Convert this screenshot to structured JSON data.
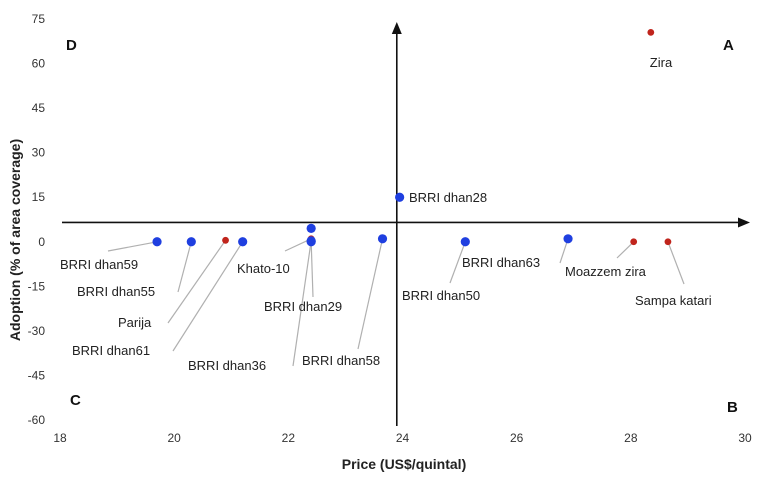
{
  "chart_data": {
    "type": "scatter",
    "title": "",
    "xlabel": "Price (US$/quintal)",
    "ylabel": "Adoption (% of area coverage)",
    "xlim": [
      18,
      30
    ],
    "ylim": [
      -60,
      75
    ],
    "x_ticks": [
      "18",
      "20",
      "22",
      "24",
      "26",
      "28",
      "30"
    ],
    "y_ticks": [
      "75",
      "60",
      "45",
      "30",
      "15",
      "0",
      "-15",
      "-30",
      "-45",
      "-60"
    ],
    "x_tick_values": [
      18,
      20,
      22,
      24,
      26,
      28,
      30
    ],
    "y_tick_values": [
      75,
      60,
      45,
      30,
      15,
      0,
      -15,
      -30,
      -45,
      -60
    ],
    "crosshair": {
      "x": 23.9,
      "y": 6.5
    },
    "grid": false,
    "quadrants": {
      "A": "A",
      "B": "B",
      "C": "C",
      "D": "D"
    },
    "colors": {
      "blue": "#1f3fe0",
      "red": "#c0241c",
      "axis": "#111111",
      "leader": "#b0b0b0"
    },
    "points": [
      {
        "label": "Zira",
        "x": 28.35,
        "y": 70.5,
        "color": "red"
      },
      {
        "label": "BRRI dhan28",
        "x": 23.95,
        "y": 15,
        "color": "blue"
      },
      {
        "label": "BRRI dhan59",
        "x": 19.7,
        "y": 0,
        "color": "blue"
      },
      {
        "label": "BRRI dhan55",
        "x": 20.3,
        "y": 0,
        "color": "blue"
      },
      {
        "label": "Parija",
        "x": 20.9,
        "y": 0.5,
        "color": "red"
      },
      {
        "label": "BRRI dhan61",
        "x": 21.2,
        "y": 0,
        "color": "blue"
      },
      {
        "label": "Khato-10",
        "x": 22.4,
        "y": 1,
        "color": "red"
      },
      {
        "label": "",
        "x": 22.4,
        "y": 4.5,
        "color": "blue"
      },
      {
        "label": "BRRI dhan29",
        "x": 22.4,
        "y": 0,
        "color": "blue"
      },
      {
        "label": "BRRI dhan36",
        "x": 22.4,
        "y": 0.3,
        "color": "blue"
      },
      {
        "label": "BRRI dhan58",
        "x": 23.65,
        "y": 1,
        "color": "blue"
      },
      {
        "label": "BRRI dhan50",
        "x": 25.1,
        "y": 0,
        "color": "blue"
      },
      {
        "label": "BRRI dhan63",
        "x": 26.9,
        "y": 1,
        "color": "blue"
      },
      {
        "label": "Moazzem zira",
        "x": 28.05,
        "y": 0,
        "color": "red"
      },
      {
        "label": "Sampa katari",
        "x": 28.65,
        "y": 0,
        "color": "red"
      }
    ]
  }
}
